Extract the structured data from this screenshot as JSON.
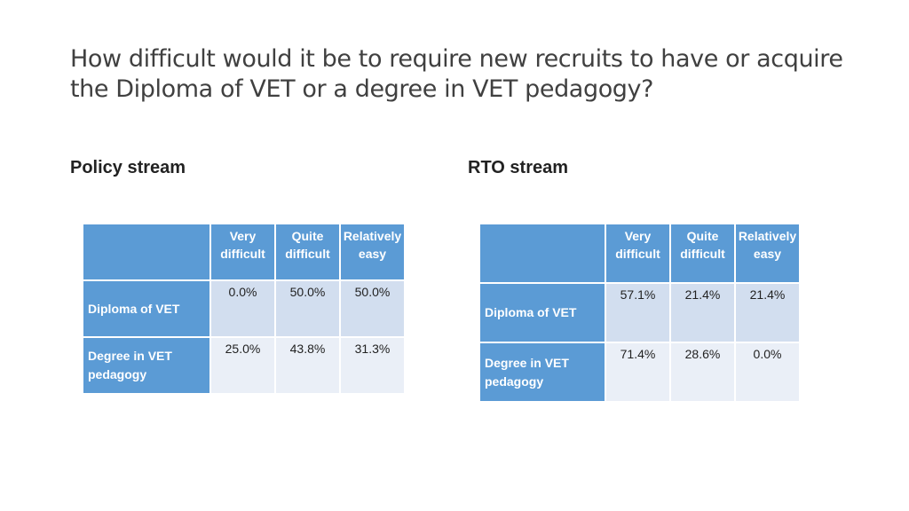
{
  "title": {
    "part1": "How difficult would it be to require ",
    "part2": "new recruits",
    "part3": " to have ",
    "part4": "or acquire",
    "line2": "the Diploma of VET or a degree in VET pedagogy?"
  },
  "policy": {
    "label": "Policy stream",
    "headers": [
      "Very difficult",
      "Quite difficult",
      "Relatively easy"
    ],
    "rows": [
      {
        "label": "Diploma of VET",
        "values": [
          "0.0%",
          "50.0%",
          "50.0%"
        ]
      },
      {
        "label": "Degree in VET pedagogy",
        "values": [
          "25.0%",
          "43.8%",
          "31.3%"
        ]
      }
    ]
  },
  "rto": {
    "label": "RTO stream",
    "headers": [
      "Very difficult",
      "Quite difficult",
      "Relatively easy"
    ],
    "rows": [
      {
        "label": "Diploma of VET",
        "values": [
          "57.1%",
          "21.4%",
          "21.4%"
        ]
      },
      {
        "label": "Degree in VET pedagogy",
        "values": [
          "71.4%",
          "28.6%",
          "0.0%"
        ]
      }
    ]
  }
}
